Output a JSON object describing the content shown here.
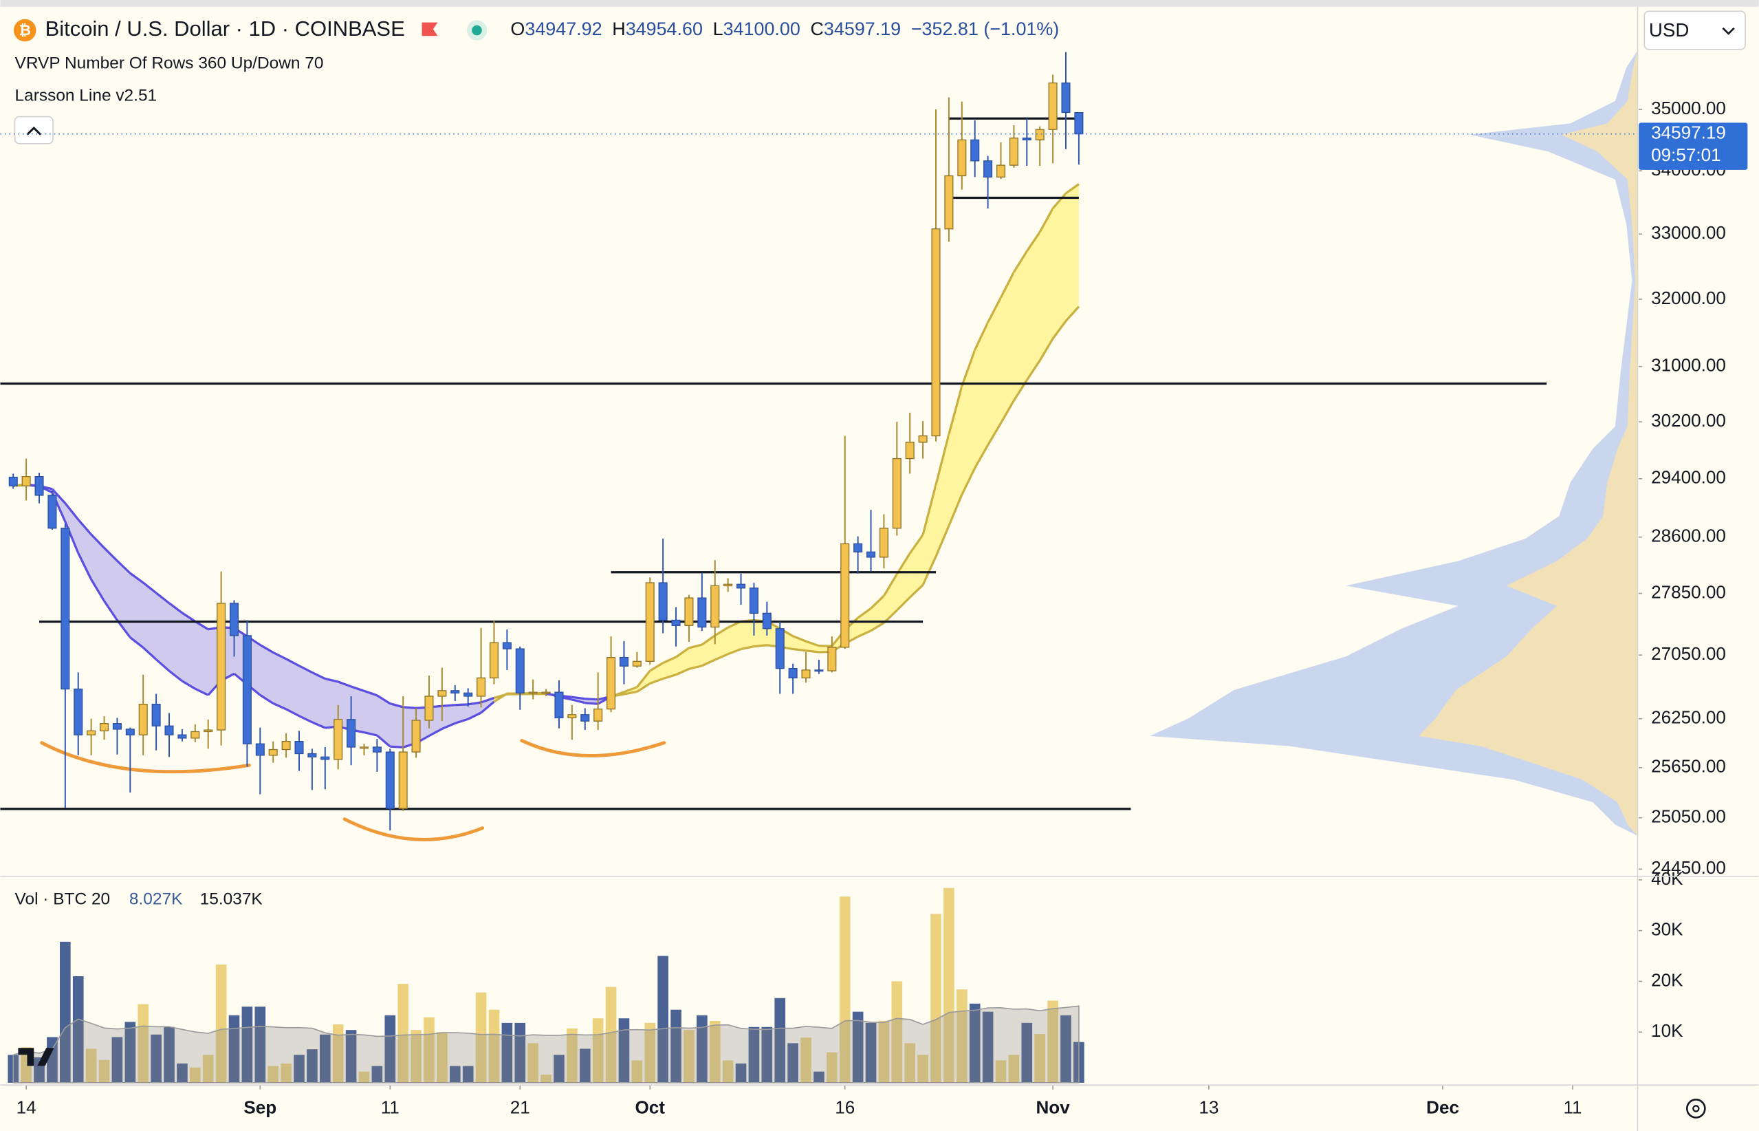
{
  "header": {
    "symbol": "Bitcoin / U.S. Dollar · 1D · COINBASE",
    "ohlc": [
      {
        "prefix": "O",
        "value": "34947.92"
      },
      {
        "prefix": "H",
        "value": "34954.60"
      },
      {
        "prefix": "L",
        "value": "34100.00"
      },
      {
        "prefix": "C",
        "value": "34597.19"
      }
    ],
    "change": "−352.81 (−1.01%)",
    "indicators": [
      "VRVP Number Of Rows 360 Up/Down 70",
      "Larsson Line v2.51"
    ],
    "currency": "USD",
    "countdown": "09:57:01"
  },
  "chart_data": [
    {
      "type": "candlestick",
      "x": [
        "Aug 13",
        "Aug 14",
        "Aug 15",
        "Aug 16",
        "Aug 17",
        "Aug 18",
        "Aug 19",
        "Aug 20",
        "Aug 21",
        "Aug 22",
        "Aug 23",
        "Aug 24",
        "Aug 25",
        "Aug 26",
        "Aug 27",
        "Aug 28",
        "Aug 29",
        "Aug 30",
        "Aug 31",
        "Sep 1",
        "Sep 2",
        "Sep 3",
        "Sep 4",
        "Sep 5",
        "Sep 6",
        "Sep 7",
        "Sep 8",
        "Sep 9",
        "Sep 10",
        "Sep 11",
        "Sep 12",
        "Sep 13",
        "Sep 14",
        "Sep 15",
        "Sep 16",
        "Sep 17",
        "Sep 18",
        "Sep 19",
        "Sep 20",
        "Sep 21",
        "Sep 22",
        "Sep 23",
        "Sep 24",
        "Sep 25",
        "Sep 26",
        "Sep 27",
        "Sep 28",
        "Sep 29",
        "Sep 30",
        "Oct 1",
        "Oct 2",
        "Oct 3",
        "Oct 4",
        "Oct 5",
        "Oct 6",
        "Oct 7",
        "Oct 8",
        "Oct 9",
        "Oct 10",
        "Oct 11",
        "Oct 12",
        "Oct 13",
        "Oct 14",
        "Oct 15",
        "Oct 16",
        "Oct 17",
        "Oct 18",
        "Oct 19",
        "Oct 20",
        "Oct 21",
        "Oct 22",
        "Oct 23",
        "Oct 24",
        "Oct 25",
        "Oct 26",
        "Oct 27",
        "Oct 28",
        "Oct 29",
        "Oct 30",
        "Oct 31",
        "Nov 1",
        "Nov 2",
        "Nov 3"
      ],
      "open": [
        29420,
        29300,
        29430,
        29170,
        28720,
        26620,
        26050,
        26100,
        26190,
        26120,
        26050,
        26430,
        26160,
        26050,
        26010,
        26090,
        26110,
        27720,
        27300,
        25940,
        25800,
        25870,
        25970,
        25820,
        25780,
        25750,
        26240,
        25900,
        25900,
        25840,
        25160,
        25840,
        26230,
        26530,
        26600,
        26570,
        26530,
        26760,
        27210,
        27130,
        26570,
        26580,
        26580,
        26260,
        26300,
        26220,
        26370,
        27020,
        26910,
        26970,
        27990,
        27500,
        27430,
        27790,
        27410,
        27950,
        27970,
        27920,
        27590,
        27390,
        26880,
        26760,
        26860,
        26850,
        27150,
        28510,
        28400,
        28330,
        28720,
        29680,
        29910,
        30000,
        33080,
        33920,
        34500,
        34160,
        33900,
        34090,
        34530,
        34500,
        34670,
        35440,
        34947.92
      ],
      "high": [
        29470,
        29680,
        29480,
        29230,
        28780,
        26830,
        26250,
        26280,
        26260,
        26140,
        26800,
        26560,
        26320,
        26120,
        26180,
        26240,
        28140,
        27760,
        27500,
        26140,
        25970,
        26070,
        26100,
        25880,
        25900,
        26420,
        26530,
        25940,
        26000,
        25880,
        26530,
        26380,
        26790,
        26890,
        26670,
        26630,
        27400,
        27490,
        27380,
        27160,
        26740,
        26620,
        26730,
        26420,
        26380,
        26830,
        27290,
        27230,
        27090,
        28060,
        28580,
        27670,
        27830,
        28120,
        28290,
        28050,
        28110,
        27990,
        27740,
        27480,
        26940,
        27090,
        26990,
        27290,
        30000,
        28610,
        28970,
        28910,
        30200,
        30330,
        30210,
        35000,
        35200,
        35130,
        34820,
        34240,
        34460,
        34740,
        34850,
        34720,
        35580,
        35960,
        34954.6
      ],
      "low": [
        29260,
        29100,
        29060,
        28700,
        25170,
        25800,
        25800,
        25990,
        25810,
        25350,
        25800,
        25860,
        25780,
        25970,
        25960,
        25880,
        25920,
        27030,
        25660,
        25330,
        25710,
        25770,
        25610,
        25380,
        25390,
        25630,
        25680,
        25800,
        25600,
        24900,
        25130,
        25770,
        26130,
        26220,
        26470,
        26400,
        26390,
        26680,
        26860,
        26360,
        26490,
        26530,
        26130,
        25990,
        26110,
        26110,
        26330,
        26680,
        26890,
        26930,
        27330,
        27160,
        27220,
        27360,
        27190,
        27870,
        27700,
        27300,
        27300,
        26560,
        26560,
        26700,
        26810,
        26830,
        27130,
        28110,
        28140,
        28180,
        28620,
        29470,
        29680,
        29920,
        32880,
        33700,
        33900,
        33400,
        33870,
        34050,
        34080,
        34080,
        34120,
        34350,
        34100
      ],
      "close": [
        29300,
        29430,
        29170,
        28720,
        26620,
        26050,
        26100,
        26190,
        26120,
        26050,
        26430,
        26160,
        26050,
        26010,
        26090,
        26110,
        27720,
        27300,
        25940,
        25800,
        25870,
        25970,
        25820,
        25780,
        25750,
        26240,
        25900,
        25900,
        25840,
        25160,
        25840,
        26230,
        26530,
        26600,
        26570,
        26530,
        26760,
        27210,
        27130,
        26570,
        26580,
        26580,
        26260,
        26300,
        26220,
        26370,
        27020,
        26910,
        26970,
        27990,
        27500,
        27430,
        27790,
        27410,
        27950,
        27970,
        27920,
        27590,
        27390,
        26880,
        26760,
        26860,
        26850,
        27150,
        28510,
        28400,
        28330,
        28720,
        29680,
        29910,
        30000,
        33080,
        33920,
        34500,
        34160,
        33900,
        34090,
        34530,
        34500,
        34670,
        35440,
        34950,
        34597.19
      ],
      "up_color": "#f2c14e",
      "down_color": "#3d6fd6",
      "xlim": [
        "Aug 12",
        "Dec 16"
      ],
      "xticks": [
        {
          "value": "Aug 14",
          "label": "14"
        },
        {
          "value": "Sep 1",
          "label": "Sep"
        },
        {
          "value": "Sep 11",
          "label": "11"
        },
        {
          "value": "Sep 21",
          "label": "21"
        },
        {
          "value": "Oct 1",
          "label": "Oct"
        },
        {
          "value": "Oct 16",
          "label": "16"
        },
        {
          "value": "Nov 1",
          "label": "Nov"
        },
        {
          "value": "Nov 13",
          "label": "13"
        },
        {
          "value": "Dec 1",
          "label": "Dec"
        },
        {
          "value": "Dec 11",
          "label": "11"
        }
      ],
      "ylim": [
        24380,
        36700
      ],
      "log_scale": true,
      "yticks": [
        {
          "value": 35000,
          "label": "35000.00"
        },
        {
          "value": 34000,
          "label": "34000.00"
        },
        {
          "value": 33000,
          "label": "33000.00"
        },
        {
          "value": 32000,
          "label": "32000.00"
        },
        {
          "value": 31000,
          "label": "31000.00"
        },
        {
          "value": 30200,
          "label": "30200.00"
        },
        {
          "value": 29400,
          "label": "29400.00"
        },
        {
          "value": 28600,
          "label": "28600.00"
        },
        {
          "value": 27850,
          "label": "27850.00"
        },
        {
          "value": 27050,
          "label": "27050.00"
        },
        {
          "value": 26250,
          "label": "26250.00"
        },
        {
          "value": 25650,
          "label": "25650.00"
        },
        {
          "value": 25050,
          "label": "25050.00"
        },
        {
          "value": 24450,
          "label": "24450.00"
        }
      ],
      "levels": [
        {
          "price": 30750,
          "from": "Aug 12",
          "to": "Dec 9"
        },
        {
          "price": 27480,
          "from": "Aug 15",
          "to": "Oct 22"
        },
        {
          "price": 28130,
          "from": "Sep 28",
          "to": "Oct 23"
        },
        {
          "price": 25155,
          "from": "Aug 12",
          "to": "Nov 7"
        },
        {
          "price": 34850,
          "from": "Oct 24",
          "to": "Nov 3"
        },
        {
          "price": 33570,
          "from": "Oct 24",
          "to": "Nov 3"
        }
      ]
    },
    {
      "type": "bar",
      "title": "Vol · BTC 20",
      "value_label": "8.027K",
      "ma_label": "15.037K",
      "values": [
        5500,
        7000,
        5000,
        9000,
        27800,
        21000,
        6700,
        4500,
        9000,
        12000,
        15500,
        9500,
        11000,
        3800,
        3000,
        5500,
        23300,
        13300,
        15000,
        15000,
        3300,
        3800,
        5500,
        6600,
        9500,
        11500,
        10400,
        2200,
        3300,
        13300,
        19500,
        10400,
        12900,
        10000,
        3300,
        3300,
        17800,
        14400,
        11800,
        11800,
        7800,
        1600,
        5500,
        10700,
        6700,
        12700,
        18900,
        12700,
        4400,
        11800,
        25000,
        14400,
        10400,
        13300,
        12200,
        4400,
        3800,
        11000,
        11000,
        16700,
        7800,
        8900,
        2200,
        6000,
        36700,
        14000,
        11800,
        12200,
        20000,
        7800,
        5500,
        33300,
        38400,
        18400,
        15600,
        14000,
        4400,
        5500,
        11800,
        9600,
        16200,
        13300,
        8027
      ],
      "up_color": "#ecd27f",
      "down_color": "#4b6394",
      "ylim": [
        0,
        40700
      ],
      "yticks": [
        {
          "value": 10000,
          "label": "10K"
        },
        {
          "value": 20000,
          "label": "20K"
        },
        {
          "value": 30000,
          "label": "30K"
        },
        {
          "value": 40000,
          "label": "40K"
        }
      ]
    }
  ]
}
